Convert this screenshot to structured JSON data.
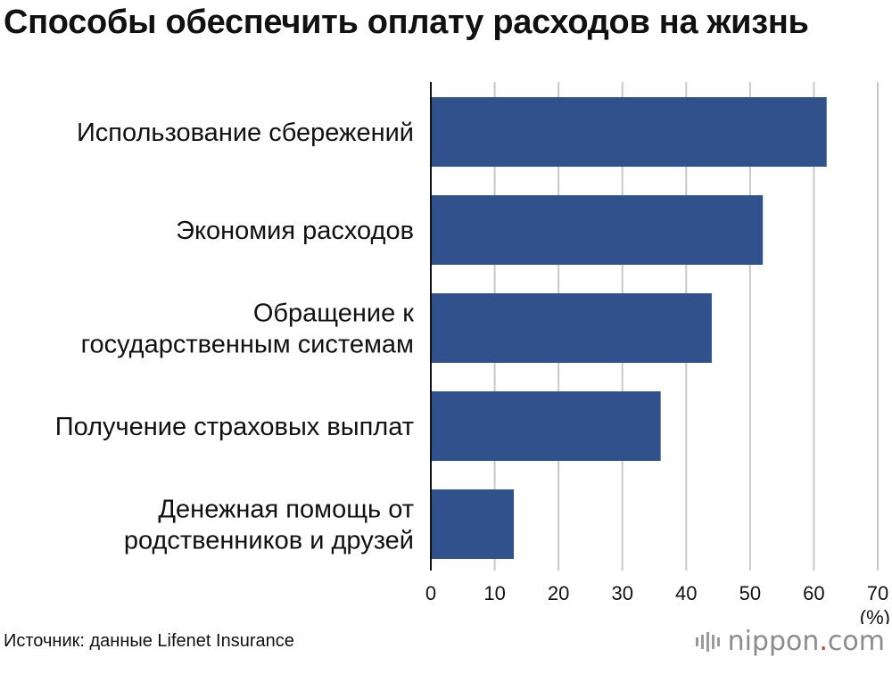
{
  "title": "Способы обеспечить оплату расходов на жизнь",
  "source": "Источник: данные Lifenet Insurance",
  "logo": {
    "name": "nippon",
    "dot": ".",
    "domain": "com"
  },
  "colors": {
    "bar": "#30518c",
    "grid": "#c8c8c8",
    "axis": "#111111"
  },
  "chart_data": {
    "type": "bar",
    "orientation": "horizontal",
    "categories": [
      [
        "Использование сбережений"
      ],
      [
        "Экономия расходов"
      ],
      [
        "Обращение к",
        "государственным системам"
      ],
      [
        "Получение страховых выплат"
      ],
      [
        "Денежная помощь от",
        "родственников и друзей"
      ]
    ],
    "values": [
      62,
      52,
      44,
      36,
      13
    ],
    "xlim": [
      0,
      70
    ],
    "xticks": [
      "0",
      "10",
      "20",
      "30",
      "40",
      "50",
      "60",
      "70"
    ],
    "xunit": "(%)",
    "grid": true
  }
}
